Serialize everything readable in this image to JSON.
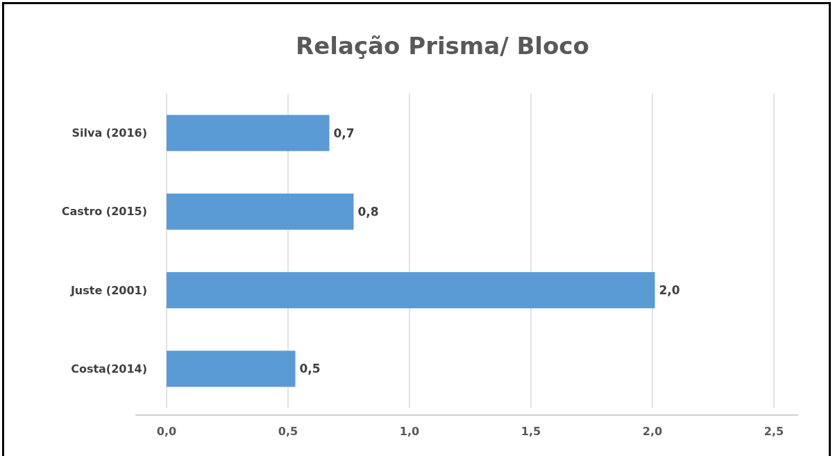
{
  "chart_data": {
    "type": "bar",
    "orientation": "horizontal",
    "title": "Relação Prisma/ Bloco",
    "categories": [
      "Silva (2016)",
      "Castro (2015)",
      "Juste (2001)",
      "Costa(2014)"
    ],
    "values": [
      0.67,
      0.77,
      2.01,
      0.53
    ],
    "value_labels": [
      "0,7",
      "0,8",
      "2,0",
      "0,5"
    ],
    "color": "#5b9bd5",
    "xlim": [
      0,
      2.5
    ],
    "xticks": [
      {
        "value": 0,
        "label": "0,0"
      },
      {
        "value": 0.5,
        "label": "0,5"
      },
      {
        "value": 1,
        "label": "1,0"
      },
      {
        "value": 1.5,
        "label": "1,5"
      },
      {
        "value": 2,
        "label": "2,0"
      },
      {
        "value": 2.5,
        "label": "2,5"
      }
    ],
    "grid": "x"
  }
}
